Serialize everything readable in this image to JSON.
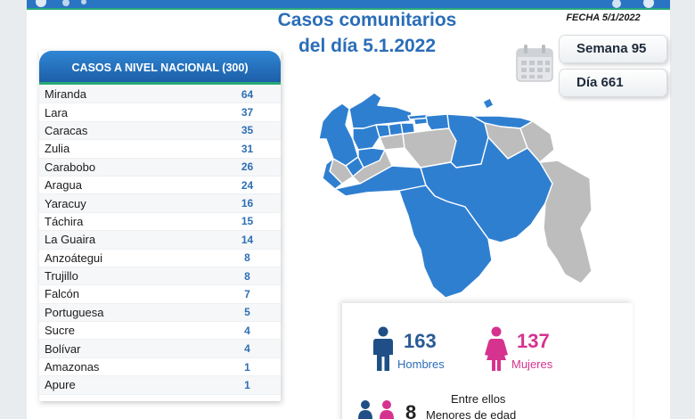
{
  "header": {
    "title_line1": "Casos comunitarios",
    "title_line2": "del día 5.1.2022",
    "fecha": "FECHA 5/1/2022"
  },
  "badges": {
    "semana": "Semana 95",
    "dia": "Día 661"
  },
  "table": {
    "title": "CASOS A NIVEL NACIONAL",
    "total": "(300)",
    "rows": [
      {
        "state": "Miranda",
        "cases": "64"
      },
      {
        "state": "Lara",
        "cases": "37"
      },
      {
        "state": "Caracas",
        "cases": "35"
      },
      {
        "state": "Zulia",
        "cases": "31"
      },
      {
        "state": "Carabobo",
        "cases": "26"
      },
      {
        "state": "Aragua",
        "cases": "24"
      },
      {
        "state": "Yaracuy",
        "cases": "16"
      },
      {
        "state": "Táchira",
        "cases": "15"
      },
      {
        "state": "La Guaira",
        "cases": "14"
      },
      {
        "state": "Anzoátegui",
        "cases": "8"
      },
      {
        "state": "Trujillo",
        "cases": "8"
      },
      {
        "state": "Falcón",
        "cases": "7"
      },
      {
        "state": "Portuguesa",
        "cases": "5"
      },
      {
        "state": "Sucre",
        "cases": "4"
      },
      {
        "state": "Bolívar",
        "cases": "4"
      },
      {
        "state": "Amazonas",
        "cases": "1"
      },
      {
        "state": "Apure",
        "cases": "1"
      }
    ]
  },
  "stats": {
    "hombres_count": "163",
    "hombres_label": "Hombres",
    "mujeres_count": "137",
    "mujeres_label": "Mujeres",
    "entre_label": "Entre ellos",
    "menores_count": "8",
    "menores_label": "Menores de edad"
  },
  "colors": {
    "brand_blue": "#2a6db8",
    "map_active": "#2f7fd1",
    "map_inactive": "#bdbdbd",
    "female_pink": "#d6338f",
    "accent_green": "#28a878"
  }
}
